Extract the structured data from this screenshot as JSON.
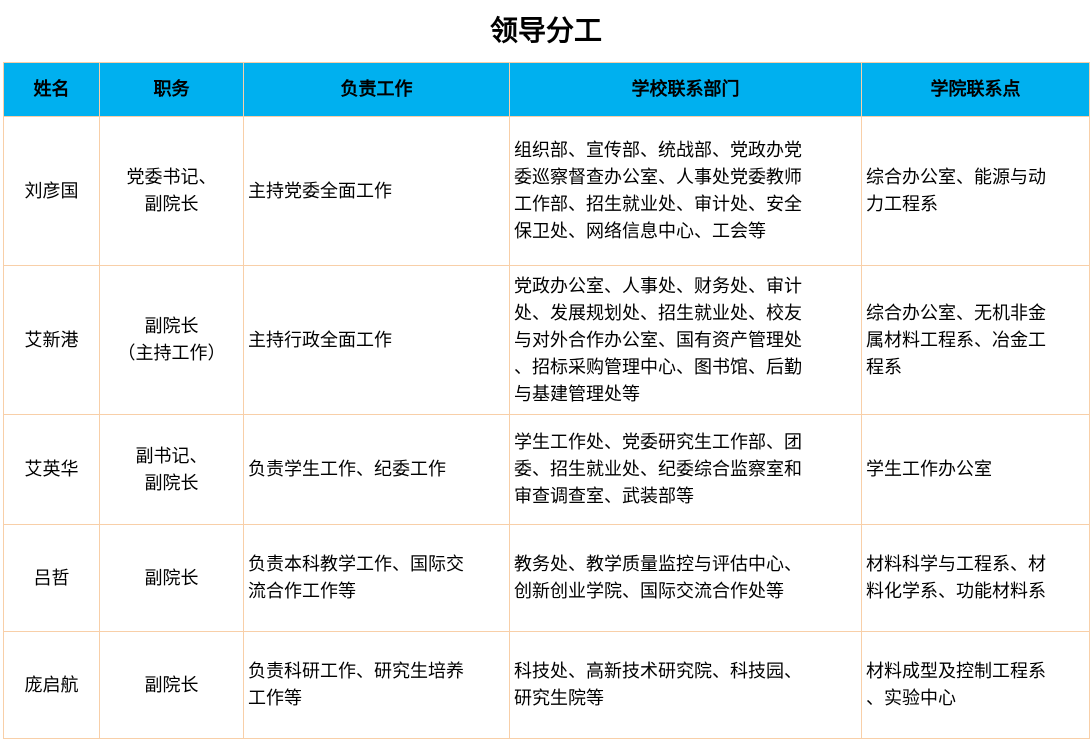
{
  "title": "领导分工",
  "header": [
    "姓名",
    "职务",
    "负责工作",
    "学校联系部门",
    "学院联系点"
  ],
  "colors": {
    "header_bg": "#00b0ef",
    "border": "#f8cfa8"
  },
  "rows": [
    {
      "name": "刘彦国",
      "position": [
        "党委书记、",
        "副院长"
      ],
      "duty": [
        "主持党委全面工作"
      ],
      "school_depts": [
        "组织部、宣传部、统战部、党政办党",
        "委巡察督查办公室、人事处党委教师",
        "工作部、招生就业处、审计处、安全",
        "保卫处、网络信息中心、工会等"
      ],
      "college_contacts": [
        "综合办公室、能源与动",
        "力工程系"
      ]
    },
    {
      "name": "艾新港",
      "position": [
        "副院长",
        "（主持工作）"
      ],
      "duty": [
        "主持行政全面工作"
      ],
      "school_depts": [
        "党政办公室、人事处、财务处、审计",
        "处、发展规划处、招生就业处、校友",
        "与对外合作办公室、国有资产管理处",
        "、招标采购管理中心、图书馆、后勤",
        "与基建管理处等"
      ],
      "college_contacts": [
        "综合办公室、无机非金",
        "属材料工程系、冶金工",
        "程系"
      ]
    },
    {
      "name": "艾英华",
      "position": [
        "副书记、",
        "副院长"
      ],
      "duty": [
        "负责学生工作、纪委工作"
      ],
      "school_depts": [
        "学生工作处、党委研究生工作部、团",
        "委、招生就业处、纪委综合监察室和",
        "审查调查室、武装部等"
      ],
      "college_contacts": [
        "学生工作办公室"
      ]
    },
    {
      "name": "吕哲",
      "position": [
        "副院长"
      ],
      "duty": [
        "负责本科教学工作、国际交",
        "流合作工作等"
      ],
      "school_depts": [
        "教务处、教学质量监控与评估中心、",
        "创新创业学院、国际交流合作处等"
      ],
      "college_contacts": [
        "材料科学与工程系、材",
        "料化学系、功能材料系"
      ]
    },
    {
      "name": "庞启航",
      "position": [
        "副院长"
      ],
      "duty": [
        "负责科研工作、研究生培养",
        "工作等"
      ],
      "school_depts": [
        "科技处、高新技术研究院、科技园、",
        "研究生院等"
      ],
      "college_contacts": [
        "材料成型及控制工程系",
        "、实验中心"
      ]
    }
  ]
}
